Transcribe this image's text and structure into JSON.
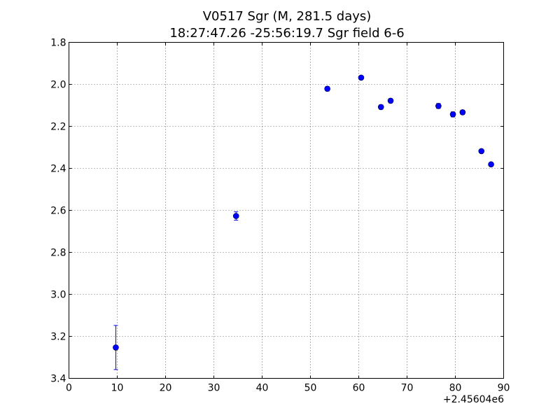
{
  "chart_data": {
    "type": "scatter",
    "title": "V0517 Sgr  (M, 281.5 days)",
    "subtitle": "18:27:47.26 -25:56:19.7 Sgr field 6-6",
    "x_offset_label": "+2.45604e6",
    "xlim": [
      0,
      90
    ],
    "ylim": [
      1.8,
      3.4
    ],
    "y_inverted": true,
    "grid": true,
    "x_ticks": [
      "0",
      "10",
      "20",
      "30",
      "40",
      "50",
      "60",
      "70",
      "80",
      "90"
    ],
    "y_ticks": [
      "1.8",
      "2.0",
      "2.2",
      "2.4",
      "2.6",
      "2.8",
      "3.0",
      "3.2",
      "3.4"
    ],
    "marker_color": "#0000ff",
    "series": [
      {
        "points": [
          {
            "x": 9.7,
            "y": 3.253,
            "err": 0.105
          },
          {
            "x": 34.6,
            "y": 2.627,
            "err": 0.02
          },
          {
            "x": 53.5,
            "y": 2.021,
            "err": 0.01
          },
          {
            "x": 60.5,
            "y": 1.968,
            "err": 0.008
          },
          {
            "x": 64.6,
            "y": 2.108,
            "err": 0.01
          },
          {
            "x": 66.6,
            "y": 2.078,
            "err": 0.01
          },
          {
            "x": 76.5,
            "y": 2.103,
            "err": 0.012
          },
          {
            "x": 79.5,
            "y": 2.143,
            "err": 0.012
          },
          {
            "x": 81.5,
            "y": 2.133,
            "err": 0.01
          },
          {
            "x": 85.4,
            "y": 2.318,
            "err": 0.008
          },
          {
            "x": 87.4,
            "y": 2.381,
            "err": 0.008
          }
        ]
      }
    ]
  }
}
